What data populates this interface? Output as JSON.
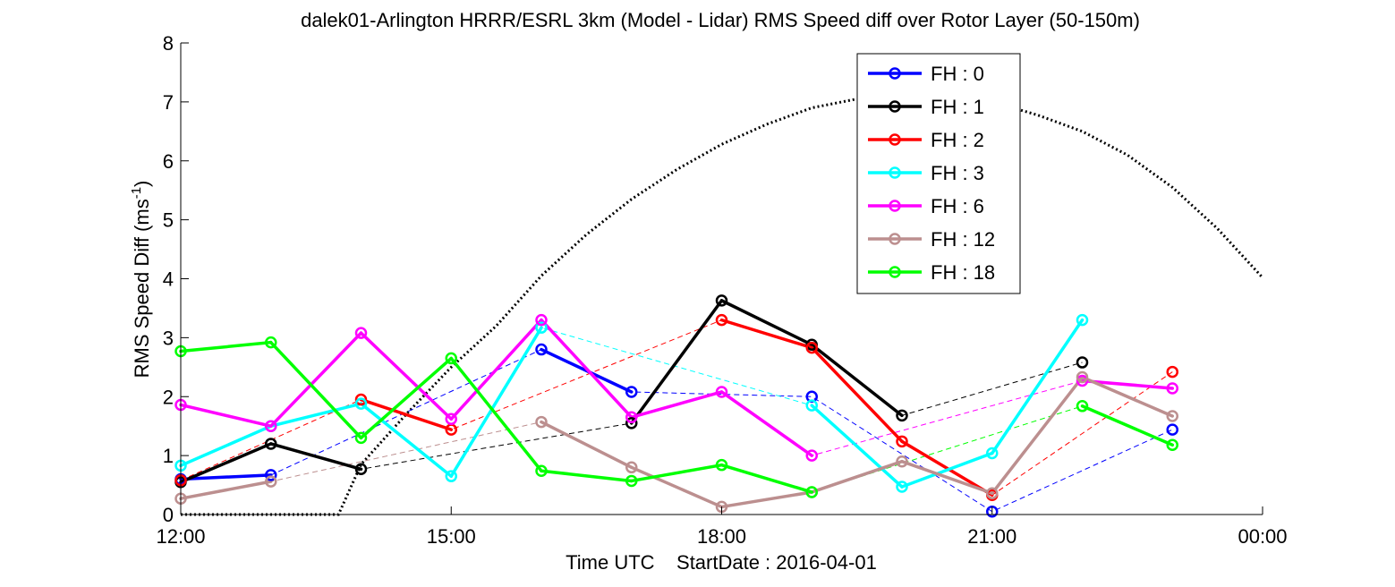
{
  "chart_data": {
    "type": "line",
    "title": "dalek01-Arlington HRRR/ESRL 3km (Model - Lidar) RMS Speed diff over Rotor Layer (50-150m)",
    "xlabel": "Time UTC    StartDate : 2016-04-01",
    "ylabel_main": "RMS Speed Diff (ms",
    "ylabel_sup": "-1",
    "ylabel_close": ")",
    "xlim": [
      12,
      24
    ],
    "ylim": [
      0,
      8
    ],
    "x_ticks": [
      12,
      15,
      18,
      21,
      24
    ],
    "x_tick_labels": [
      "12:00",
      "15:00",
      "18:00",
      "21:00",
      "00:00"
    ],
    "y_ticks": [
      0,
      1,
      2,
      3,
      4,
      5,
      6,
      7,
      8
    ],
    "y_tick_labels": [
      "0",
      "1",
      "2",
      "3",
      "4",
      "5",
      "6",
      "7",
      "8"
    ],
    "legend_position": "top-right",
    "series": [
      {
        "name": "FH : 0",
        "color": "#0000ff",
        "x": [
          12,
          13,
          14,
          15,
          16,
          17,
          18,
          19,
          20,
          21,
          22,
          23
        ],
        "y": [
          0.6,
          0.67,
          null,
          null,
          2.8,
          2.08,
          null,
          2.0,
          null,
          0.05,
          null,
          1.44
        ]
      },
      {
        "name": "FH : 1",
        "color": "#000000",
        "x": [
          12,
          13,
          14,
          15,
          16,
          17,
          18,
          19,
          20,
          21,
          22,
          23
        ],
        "y": [
          0.55,
          1.2,
          0.77,
          null,
          null,
          1.55,
          3.63,
          2.88,
          1.68,
          null,
          2.58,
          null
        ]
      },
      {
        "name": "FH : 2",
        "color": "#ff0000",
        "x": [
          12,
          13,
          14,
          15,
          16,
          17,
          18,
          19,
          20,
          21,
          22,
          23
        ],
        "y": [
          0.58,
          null,
          1.95,
          1.44,
          null,
          null,
          3.3,
          2.83,
          1.24,
          0.33,
          null,
          2.42
        ]
      },
      {
        "name": "FH : 3",
        "color": "#00ffff",
        "x": [
          12,
          13,
          14,
          15,
          16,
          17,
          18,
          19,
          20,
          21,
          22,
          23
        ],
        "y": [
          0.83,
          1.5,
          1.88,
          0.65,
          3.17,
          null,
          null,
          1.85,
          0.47,
          1.04,
          3.3,
          null
        ]
      },
      {
        "name": "FH : 6",
        "color": "#ff00ff",
        "x": [
          12,
          13,
          14,
          15,
          16,
          17,
          18,
          19,
          20,
          21,
          22,
          23
        ],
        "y": [
          1.86,
          1.5,
          3.08,
          1.62,
          3.3,
          1.65,
          2.08,
          1.0,
          null,
          null,
          2.27,
          2.14
        ]
      },
      {
        "name": "FH : 12",
        "color": "#bc8f8f",
        "x": [
          12,
          13,
          14,
          15,
          16,
          17,
          18,
          19,
          20,
          21,
          22,
          23
        ],
        "y": [
          0.27,
          0.56,
          null,
          null,
          1.57,
          0.8,
          0.13,
          0.38,
          0.9,
          0.36,
          2.33,
          1.67
        ]
      },
      {
        "name": "FH : 18",
        "color": "#00ff00",
        "x": [
          12,
          13,
          14,
          15,
          16,
          17,
          18,
          19,
          20,
          21,
          22,
          23
        ],
        "y": [
          2.77,
          2.92,
          1.3,
          2.65,
          0.74,
          0.57,
          0.84,
          0.38,
          null,
          null,
          1.84,
          1.18
        ]
      }
    ],
    "dotted_curve": {
      "color": "#000000",
      "x": [
        12.0,
        13.75,
        14.0,
        14.5,
        15.0,
        15.5,
        16.0,
        16.5,
        17.0,
        17.5,
        18.0,
        18.5,
        19.0,
        19.5,
        20.0,
        20.5,
        21.0,
        21.5,
        22.0,
        22.5,
        23.0,
        23.5,
        24.0
      ],
      "y": [
        0.0,
        0.0,
        0.85,
        1.7,
        2.5,
        3.2,
        4.05,
        4.75,
        5.35,
        5.85,
        6.28,
        6.62,
        6.9,
        7.05,
        7.1,
        7.08,
        7.0,
        6.78,
        6.5,
        6.1,
        5.55,
        4.85,
        4.02
      ]
    }
  }
}
